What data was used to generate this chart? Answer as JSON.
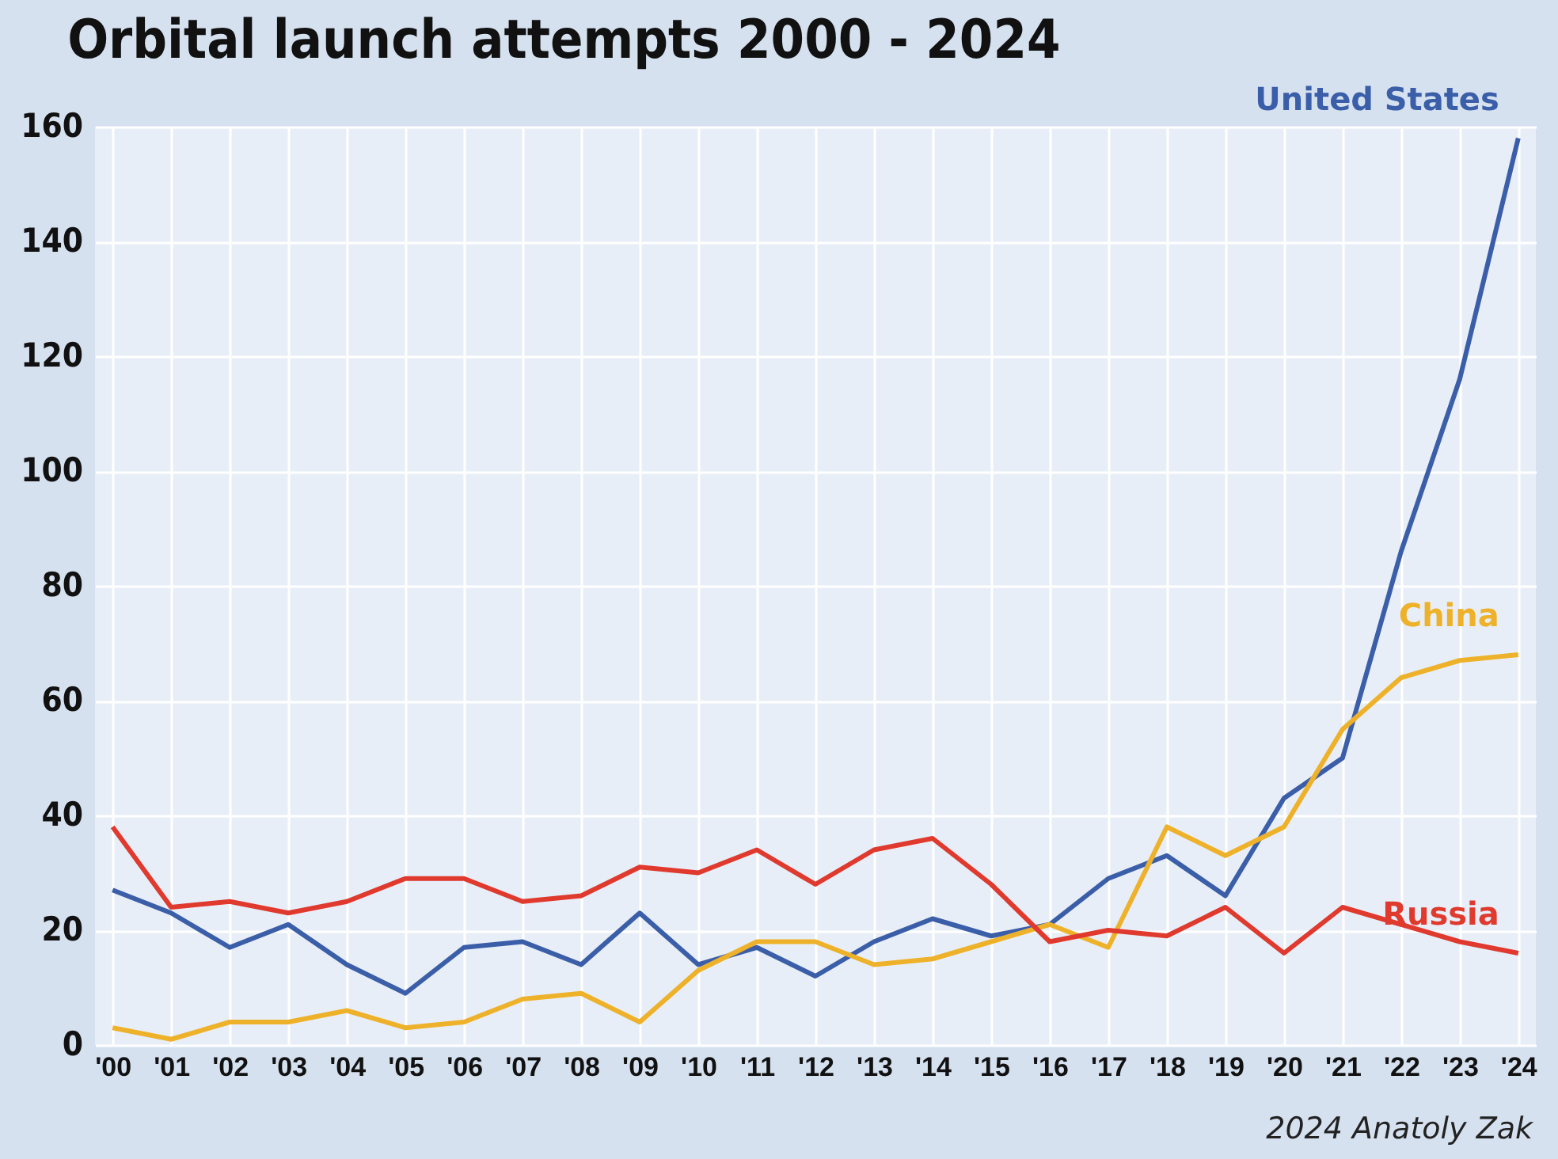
{
  "chart_data": {
    "type": "line",
    "title": "Orbital launch attempts 2000 - 2024",
    "categories": [
      "'00",
      "'01",
      "'02",
      "'03",
      "'04",
      "'05",
      "'06",
      "'07",
      "'08",
      "'09",
      "'10",
      "'11",
      "'12",
      "'13",
      "'14",
      "'15",
      "'16",
      "'17",
      "'18",
      "'19",
      "'20",
      "'21",
      "'22",
      "'23",
      "'24"
    ],
    "series": [
      {
        "name": "United States",
        "color": "#3b5ea8",
        "values": [
          27,
          23,
          17,
          21,
          14,
          9,
          17,
          18,
          14,
          23,
          14,
          17,
          12,
          18,
          22,
          19,
          21,
          29,
          33,
          26,
          43,
          50,
          86,
          116,
          158
        ]
      },
      {
        "name": "China",
        "color": "#eeb12a",
        "values": [
          3,
          1,
          4,
          4,
          6,
          3,
          4,
          8,
          9,
          4,
          13,
          18,
          18,
          14,
          15,
          18,
          21,
          17,
          38,
          33,
          38,
          55,
          64,
          67,
          68
        ]
      },
      {
        "name": "Russia",
        "color": "#e0392e",
        "values": [
          38,
          24,
          25,
          23,
          25,
          29,
          29,
          25,
          26,
          31,
          30,
          34,
          28,
          34,
          36,
          28,
          18,
          20,
          19,
          24,
          16,
          24,
          21,
          18,
          16
        ]
      }
    ],
    "ylim": [
      0,
      160
    ],
    "yticks": [
      0,
      20,
      40,
      60,
      80,
      100,
      120,
      140,
      160
    ],
    "grid": true,
    "legend": false,
    "marker": "none",
    "line_style": "solid",
    "annotations": [
      "2024 Anatoly Zak"
    ]
  }
}
